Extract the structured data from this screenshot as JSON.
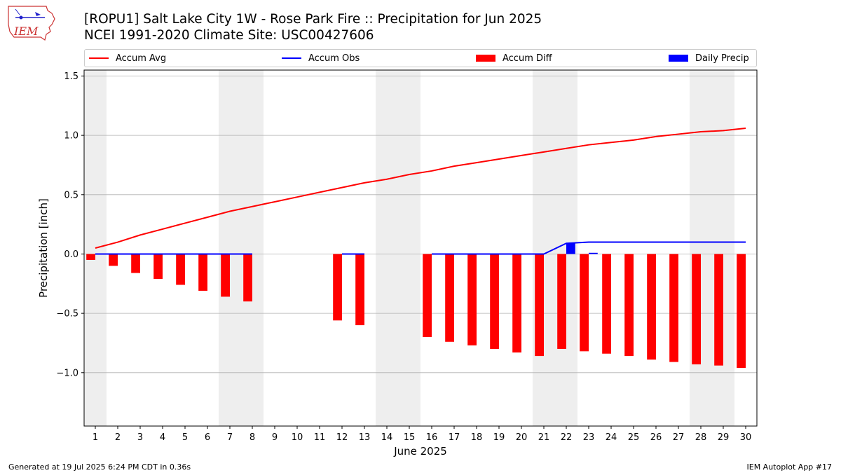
{
  "title_line1": "[ROPU1] Salt Lake City 1W - Rose Park Fire :: Precipitation for Jun 2025",
  "title_line2": "NCEI 1991-2020 Climate Site: USC00427606",
  "logo_text": "IEM",
  "footer_left": "Generated at 19 Jul 2025 6:24 PM CDT in 0.36s",
  "footer_right": "IEM Autoplot App #17",
  "colors": {
    "avg": "#ff0000",
    "obs": "#0000ff",
    "diff": "#ff0000",
    "daily": "#0000ff",
    "weekend": "#eeeeee",
    "grid": "#b0b0b0"
  },
  "chart_data": {
    "type": "bar",
    "xlabel": "June 2025",
    "ylabel": "Precipitation [inch]",
    "ylim": [
      -1.45,
      1.55
    ],
    "yticks": [
      -1.0,
      -0.5,
      0.0,
      0.5,
      1.0,
      1.5
    ],
    "ytick_labels": [
      "−1.0",
      "−0.5",
      "0.0",
      "0.5",
      "1.0",
      "1.5"
    ],
    "days": [
      1,
      2,
      3,
      4,
      5,
      6,
      7,
      8,
      9,
      10,
      11,
      12,
      13,
      14,
      15,
      16,
      17,
      18,
      19,
      20,
      21,
      22,
      23,
      24,
      25,
      26,
      27,
      28,
      29,
      30
    ],
    "shaded_days": [
      [
        0.5,
        1.5
      ],
      [
        6.5,
        8.5
      ],
      [
        13.5,
        15.5
      ],
      [
        20.5,
        22.5
      ],
      [
        27.5,
        29.5
      ]
    ],
    "legend": {
      "position": "top",
      "entries": [
        "Accum Avg",
        "Accum Obs",
        "Accum Diff",
        "Daily Precip"
      ]
    },
    "series": [
      {
        "name": "Accum Avg",
        "kind": "line",
        "days": [
          1,
          2,
          3,
          4,
          5,
          6,
          7,
          8,
          9,
          10,
          11,
          12,
          13,
          14,
          15,
          16,
          17,
          18,
          19,
          20,
          21,
          22,
          23,
          24,
          25,
          26,
          27,
          28,
          29,
          30
        ],
        "values": [
          0.05,
          0.1,
          0.16,
          0.21,
          0.26,
          0.31,
          0.36,
          0.4,
          0.44,
          0.48,
          0.52,
          0.56,
          0.6,
          0.63,
          0.67,
          0.7,
          0.74,
          0.77,
          0.8,
          0.83,
          0.86,
          0.89,
          0.92,
          0.94,
          0.96,
          0.99,
          1.01,
          1.03,
          1.04,
          1.06
        ]
      },
      {
        "name": "Accum Obs",
        "kind": "line",
        "segments": [
          {
            "days": [
              1,
              2,
              3,
              4,
              5,
              6,
              7,
              8
            ],
            "values": [
              0,
              0,
              0,
              0,
              0,
              0,
              0,
              0
            ]
          },
          {
            "days": [
              12,
              13
            ],
            "values": [
              0,
              0
            ]
          },
          {
            "days": [
              16,
              17,
              18,
              19,
              20,
              21,
              22,
              23,
              24,
              25,
              26,
              27,
              28,
              29,
              30
            ],
            "values": [
              0,
              0,
              0,
              0,
              0,
              0,
              0.09,
              0.1,
              0.1,
              0.1,
              0.1,
              0.1,
              0.1,
              0.1,
              0.1
            ]
          }
        ]
      },
      {
        "name": "Accum Diff",
        "kind": "bar",
        "days": [
          1,
          2,
          3,
          4,
          5,
          6,
          7,
          8,
          12,
          13,
          16,
          17,
          18,
          19,
          20,
          21,
          22,
          23,
          24,
          25,
          26,
          27,
          28,
          29,
          30
        ],
        "values": [
          -0.05,
          -0.1,
          -0.16,
          -0.21,
          -0.26,
          -0.31,
          -0.36,
          -0.4,
          -0.56,
          -0.6,
          -0.7,
          -0.74,
          -0.77,
          -0.8,
          -0.83,
          -0.86,
          -0.8,
          -0.82,
          -0.84,
          -0.86,
          -0.89,
          -0.91,
          -0.93,
          -0.94,
          -0.96
        ]
      },
      {
        "name": "Daily Precip",
        "kind": "bar",
        "days": [
          22,
          23
        ],
        "values": [
          0.09,
          0.01
        ]
      }
    ]
  }
}
